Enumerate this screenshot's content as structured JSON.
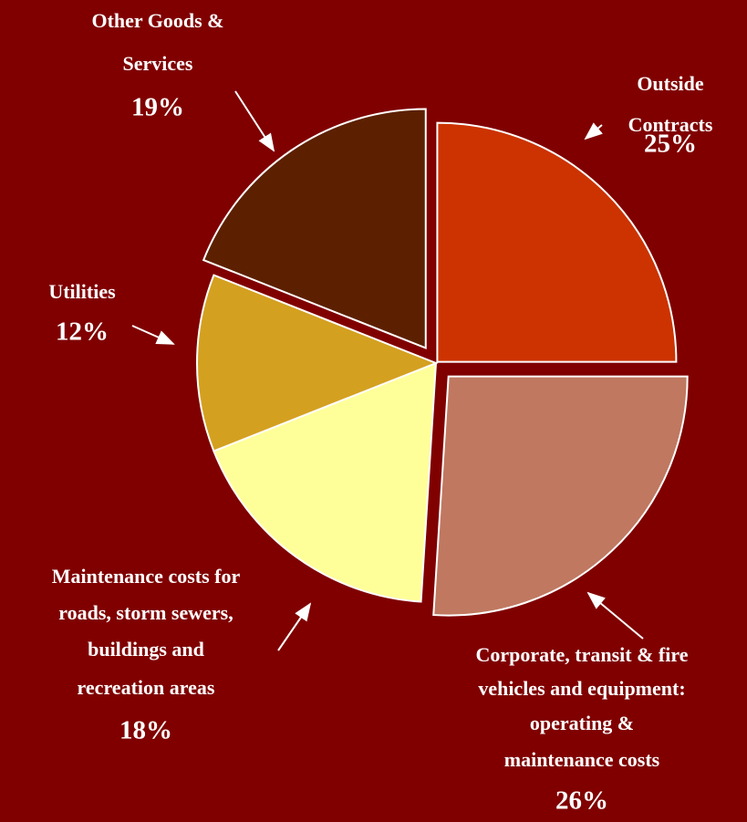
{
  "chart_data": {
    "type": "pie",
    "categories": [
      [
        "Outside",
        "Contracts"
      ],
      [
        "Corporate, transit & fire",
        "vehicles and equipment:",
        "operating &",
        "maintenance costs"
      ],
      [
        "Maintenance costs for",
        "roads, storm sewers,",
        "buildings and",
        "recreation areas"
      ],
      [
        "Utilities"
      ],
      [
        "Other Goods &",
        "Services"
      ]
    ],
    "values": [
      25,
      26,
      18,
      12,
      19
    ],
    "value_labels": [
      "25%",
      "26%",
      "18%",
      "12%",
      "19%"
    ],
    "colors": [
      "#cc3300",
      "#c07860",
      "#ffff99",
      "#d4a020",
      "#5c2000"
    ]
  }
}
